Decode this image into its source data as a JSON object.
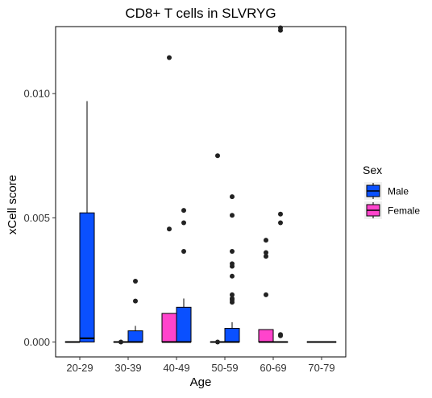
{
  "chart_data": {
    "type": "boxplot",
    "title": "CD8+ T cells in SLVRYG",
    "xlabel": "Age",
    "ylabel": "xCell score",
    "categories": [
      "20-29",
      "30-39",
      "40-49",
      "50-59",
      "60-69",
      "70-79"
    ],
    "ylim": [
      -0.0006,
      0.0127
    ],
    "yticks": [
      0.0,
      0.005,
      0.01
    ],
    "ytick_labels": [
      "0.000",
      "0.005",
      "0.010"
    ],
    "grid": false,
    "legend": {
      "title": "Sex",
      "position": "right",
      "entries": [
        {
          "label": "Male",
          "color": "#0a50ff"
        },
        {
          "label": "Female",
          "color": "#ff44cc"
        }
      ]
    },
    "groups": [
      {
        "category": "20-29",
        "sex": "Female",
        "q1": 0,
        "median": 0,
        "q3": 0,
        "whisker_low": 0,
        "whisker_high": 0,
        "outliers": []
      },
      {
        "category": "20-29",
        "sex": "Male",
        "q1": 0,
        "median": 0.00015,
        "q3": 0.0052,
        "whisker_low": 0,
        "whisker_high": 0.0097,
        "outliers": []
      },
      {
        "category": "30-39",
        "sex": "Female",
        "q1": 0,
        "median": 0,
        "q3": 0,
        "whisker_low": 0,
        "whisker_high": 0,
        "outliers": [
          0
        ]
      },
      {
        "category": "30-39",
        "sex": "Male",
        "q1": 0,
        "median": 0,
        "q3": 0.00045,
        "whisker_low": 0,
        "whisker_high": 0.00065,
        "outliers": [
          0.00165,
          0.00245
        ]
      },
      {
        "category": "40-49",
        "sex": "Female",
        "q1": 0,
        "median": 0,
        "q3": 0.00115,
        "whisker_low": 0,
        "whisker_high": 0.00115,
        "outliers": [
          0.00455,
          0.01145
        ]
      },
      {
        "category": "40-49",
        "sex": "Male",
        "q1": 0,
        "median": 0,
        "q3": 0.0014,
        "whisker_low": 0,
        "whisker_high": 0.00175,
        "outliers": [
          0.00365,
          0.0048,
          0.0053
        ]
      },
      {
        "category": "50-59",
        "sex": "Female",
        "q1": 0,
        "median": 0,
        "q3": 0,
        "whisker_low": 0,
        "whisker_high": 0,
        "outliers": [
          0,
          0.0075
        ]
      },
      {
        "category": "50-59",
        "sex": "Male",
        "q1": 0,
        "median": 0,
        "q3": 0.00055,
        "whisker_low": 0,
        "whisker_high": 0.0008,
        "outliers": [
          0.0016,
          0.0017,
          0.00175,
          0.0019,
          0.00265,
          0.00305,
          0.00315,
          0.00365,
          0.0051,
          0.00585
        ]
      },
      {
        "category": "60-69",
        "sex": "Female",
        "q1": 0,
        "median": 0,
        "q3": 0.0005,
        "whisker_low": 0,
        "whisker_high": 0.0005,
        "outliers": [
          0.0019,
          0.00345,
          0.0036,
          0.0041
        ]
      },
      {
        "category": "60-69",
        "sex": "Male",
        "q1": 0,
        "median": 0,
        "q3": 0,
        "whisker_low": 0,
        "whisker_high": 0,
        "outliers": [
          0.00025,
          0.0003,
          0.0048,
          0.00515,
          0.01255,
          0.01265
        ]
      },
      {
        "category": "70-79",
        "sex": "Female",
        "q1": 0,
        "median": 0,
        "q3": 0,
        "whisker_low": 0,
        "whisker_high": 0,
        "outliers": []
      },
      {
        "category": "70-79",
        "sex": "Male",
        "q1": 0,
        "median": 0,
        "q3": 0,
        "whisker_low": 0,
        "whisker_high": 0,
        "outliers": []
      }
    ]
  }
}
